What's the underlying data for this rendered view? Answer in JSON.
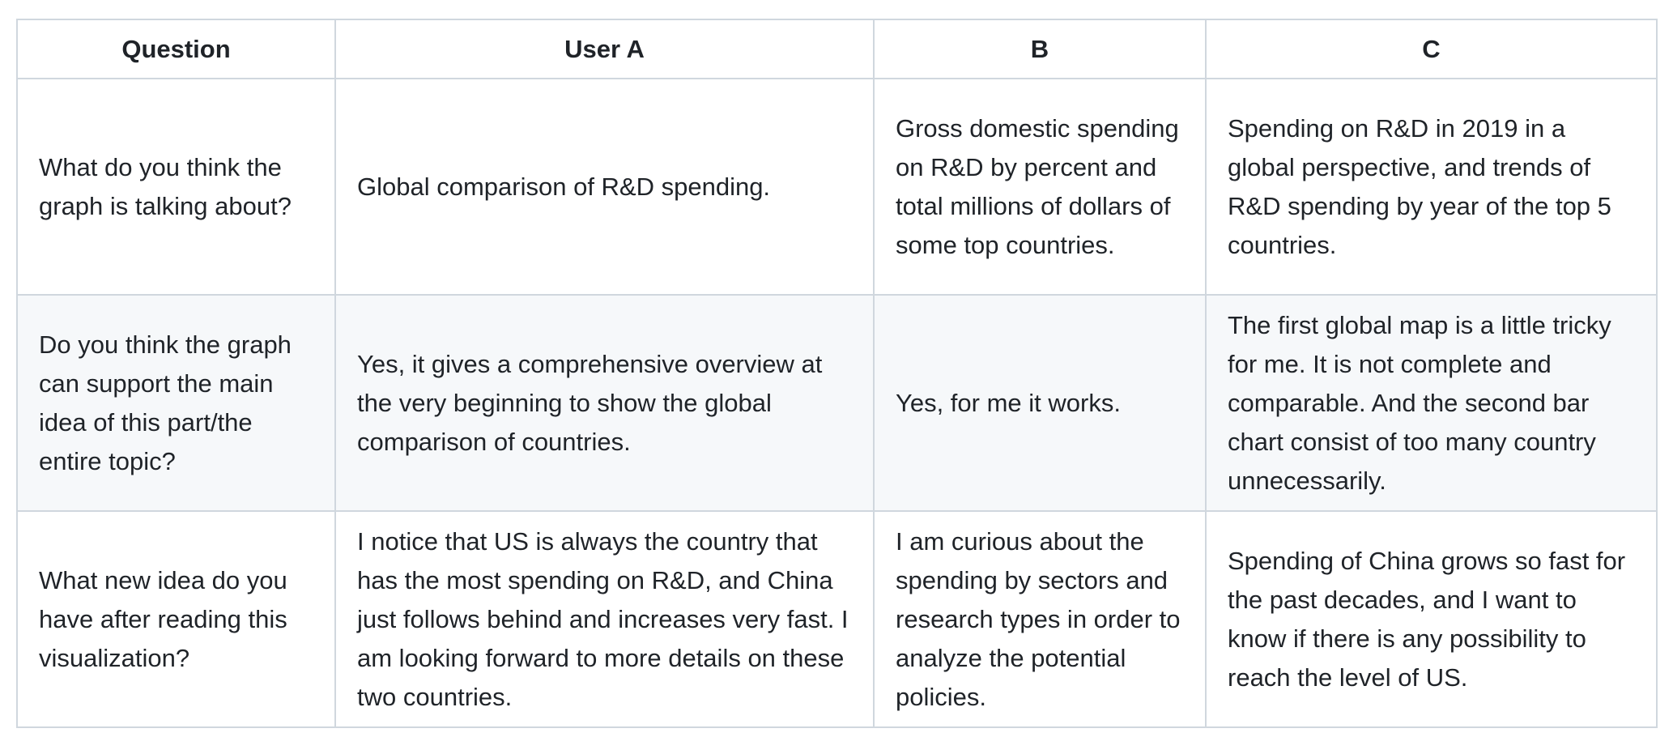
{
  "table": {
    "headers": [
      "Question",
      "User A",
      "B",
      "C"
    ],
    "rows": [
      [
        "What do you think the graph is talking about?",
        "Global comparison of R&D spending.",
        "Gross domestic spending on R&D by percent and total millions of dollars of some top countries.",
        "Spending on R&D in 2019 in a global perspective, and trends of R&D spending by year of the top 5 countries."
      ],
      [
        "Do you think the graph can support the main idea of this part/the entire topic?",
        "Yes, it gives a comprehensive overview at the very beginning to show the global comparison of countries.",
        "Yes, for me it works.",
        "The first global map is a little tricky for me. It is not complete and comparable. And the second bar chart consist of too many country unnecessarily."
      ],
      [
        "What new idea do you have after reading this visualization?",
        "I notice that US is always the country that has the most spending on R&D, and China just follows behind and increases very fast. I am looking forward to more details on these two countries.",
        "I am curious about the spending by sectors and research types in order to analyze the potential policies.",
        "Spending of China grows so fast for the past decades, and I want to know if there is any possibility to reach the level of US."
      ]
    ]
  }
}
